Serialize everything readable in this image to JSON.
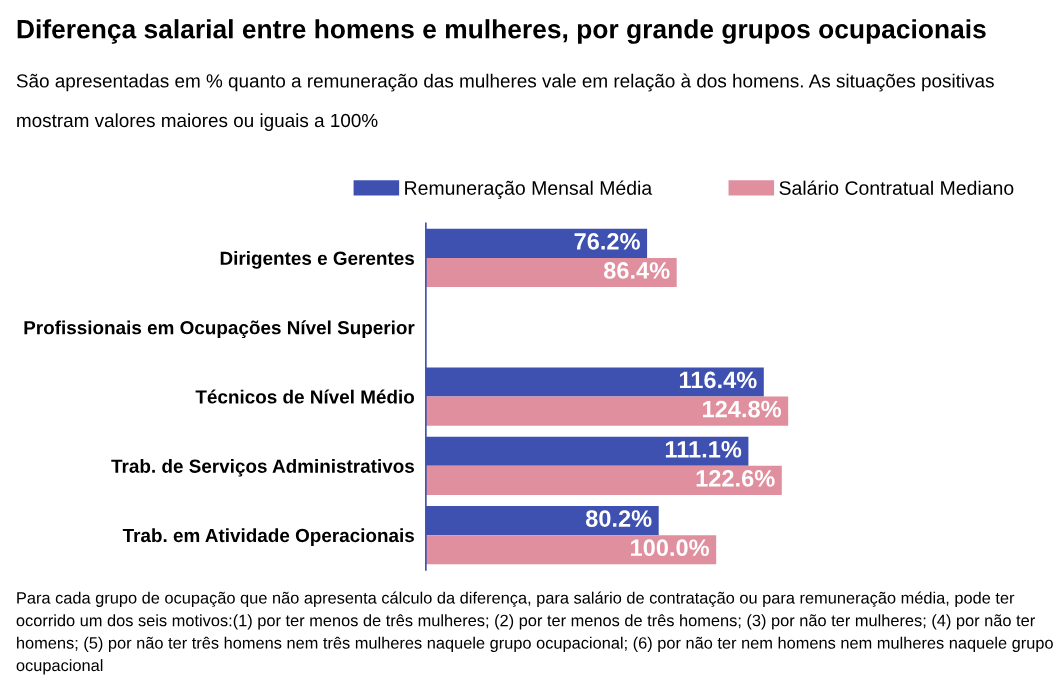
{
  "chart_data": {
    "type": "bar",
    "orientation": "horizontal",
    "title": "Diferença salarial entre homens e mulheres, por grande grupos ocupacionais",
    "subtitle": "São apresentadas em % quanto a remuneração das mulheres vale em relação à dos homens. As situações positivas mostram valores maiores ou iguais a 100%",
    "categories": [
      "Dirigentes e Gerentes",
      "Profissionais em Ocupações Nível Superior",
      "Técnicos de Nível Médio",
      "Trab. de Serviços Administrativos",
      "Trab. em Atividade Operacionais"
    ],
    "series": [
      {
        "name": "Remuneração Mensal Média",
        "color": "#3f51b0",
        "values": [
          76.2,
          null,
          116.4,
          111.1,
          80.2
        ],
        "value_labels": [
          "76.2%",
          null,
          "116.4%",
          "111.1%",
          "80.2%"
        ]
      },
      {
        "name": "Salário Contratual Mediano",
        "color": "#e08f9f",
        "values": [
          86.4,
          null,
          124.8,
          122.6,
          100.0
        ],
        "value_labels": [
          "86.4%",
          null,
          "124.8%",
          "122.6%",
          "100.0%"
        ]
      }
    ],
    "legend": "top",
    "grid": false,
    "annotations": [
      "Para cada grupo de ocupação que não apresenta cálculo da diferença, para salário de contratação ou para remuneração média, pode ter ocorrido um dos seis motivos:(1) por ter menos de três mulheres; (2) por ter menos de três homens; (3) por não ter mulheres; (4) por não ter homens; (5) por não ter três homens nem três mulheres naquele grupo ocupacional; (6) por não ter nem homens nem mulheres naquele grupo ocupacional"
    ]
  }
}
